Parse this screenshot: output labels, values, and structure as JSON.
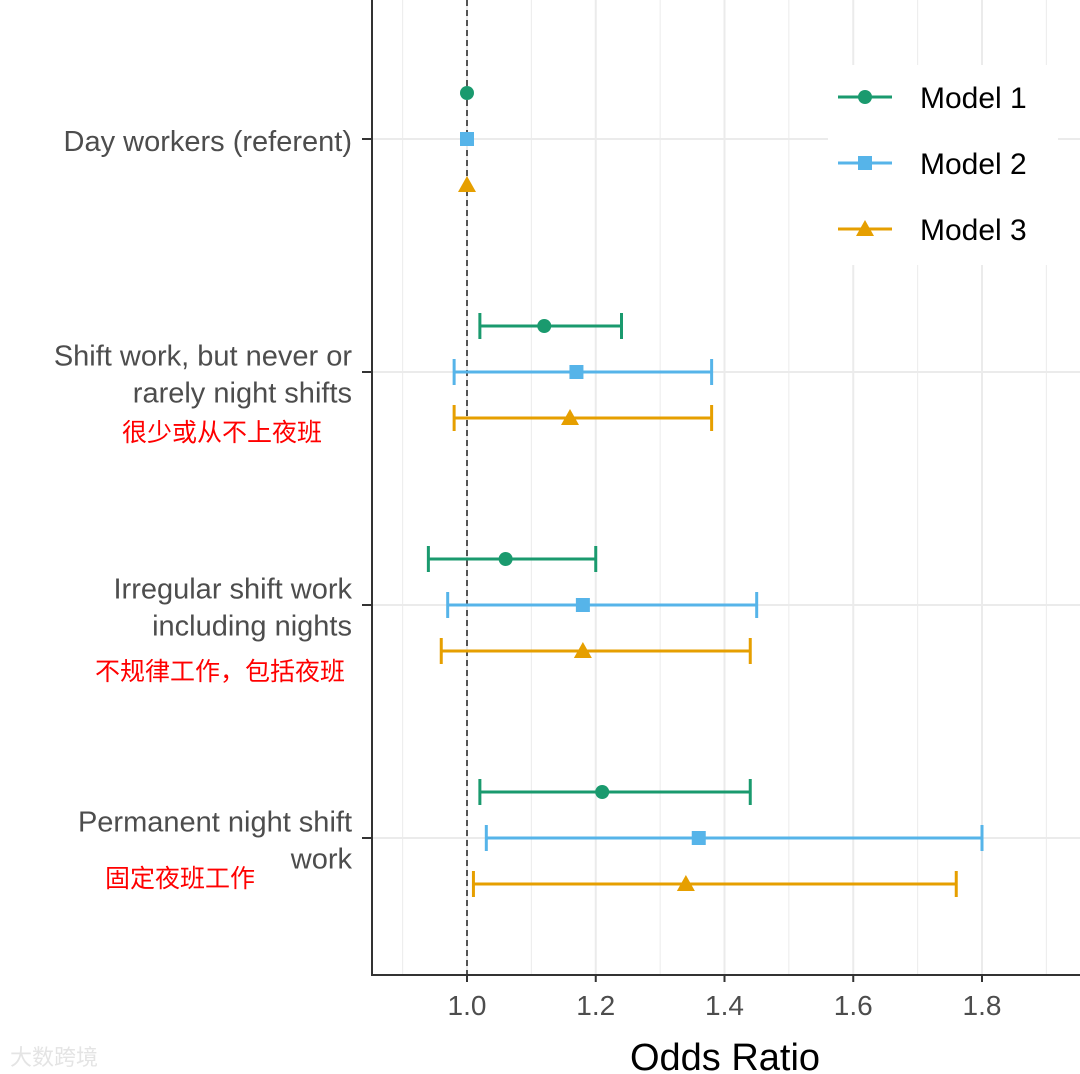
{
  "chart_data": {
    "type": "forest",
    "title": "",
    "xlabel": "Odds Ratio",
    "ylabel": "",
    "xlim": [
      0.85,
      1.95
    ],
    "xticks": [
      1.0,
      1.2,
      1.4,
      1.6,
      1.8
    ],
    "xtick_labels": [
      "1.0",
      "1.2",
      "1.4",
      "1.6",
      "1.8"
    ],
    "reference_line": 1.0,
    "grid": true,
    "legend_position": "top-right",
    "series": [
      {
        "name": "Model 1",
        "color": "#1a9a6e",
        "marker": "circle"
      },
      {
        "name": "Model 2",
        "color": "#56b4e9",
        "marker": "square"
      },
      {
        "name": "Model 3",
        "color": "#e69f00",
        "marker": "triangle"
      }
    ],
    "categories": [
      {
        "label": [
          "Day workers (referent)"
        ],
        "annotation": "",
        "values": [
          {
            "or": 1.0,
            "lo": 1.0,
            "hi": 1.0
          },
          {
            "or": 1.0,
            "lo": 1.0,
            "hi": 1.0
          },
          {
            "or": 1.0,
            "lo": 1.0,
            "hi": 1.0
          }
        ]
      },
      {
        "label": [
          "Shift work, but never or",
          "rarely night shifts"
        ],
        "annotation": "很少或从不上夜班",
        "values": [
          {
            "or": 1.12,
            "lo": 1.02,
            "hi": 1.24
          },
          {
            "or": 1.17,
            "lo": 0.98,
            "hi": 1.38
          },
          {
            "or": 1.16,
            "lo": 0.98,
            "hi": 1.38
          }
        ]
      },
      {
        "label": [
          "Irregular shift work",
          "including nights"
        ],
        "annotation": "不规律工作，包括夜班",
        "values": [
          {
            "or": 1.06,
            "lo": 0.94,
            "hi": 1.2
          },
          {
            "or": 1.18,
            "lo": 0.97,
            "hi": 1.45
          },
          {
            "or": 1.18,
            "lo": 0.96,
            "hi": 1.44
          }
        ]
      },
      {
        "label": [
          "Permanent night shift",
          "work"
        ],
        "annotation": "固定夜班工作",
        "values": [
          {
            "or": 1.21,
            "lo": 1.02,
            "hi": 1.44
          },
          {
            "or": 1.36,
            "lo": 1.03,
            "hi": 1.8
          },
          {
            "or": 1.34,
            "lo": 1.01,
            "hi": 1.76
          }
        ]
      }
    ]
  },
  "watermark": "大数跨境"
}
